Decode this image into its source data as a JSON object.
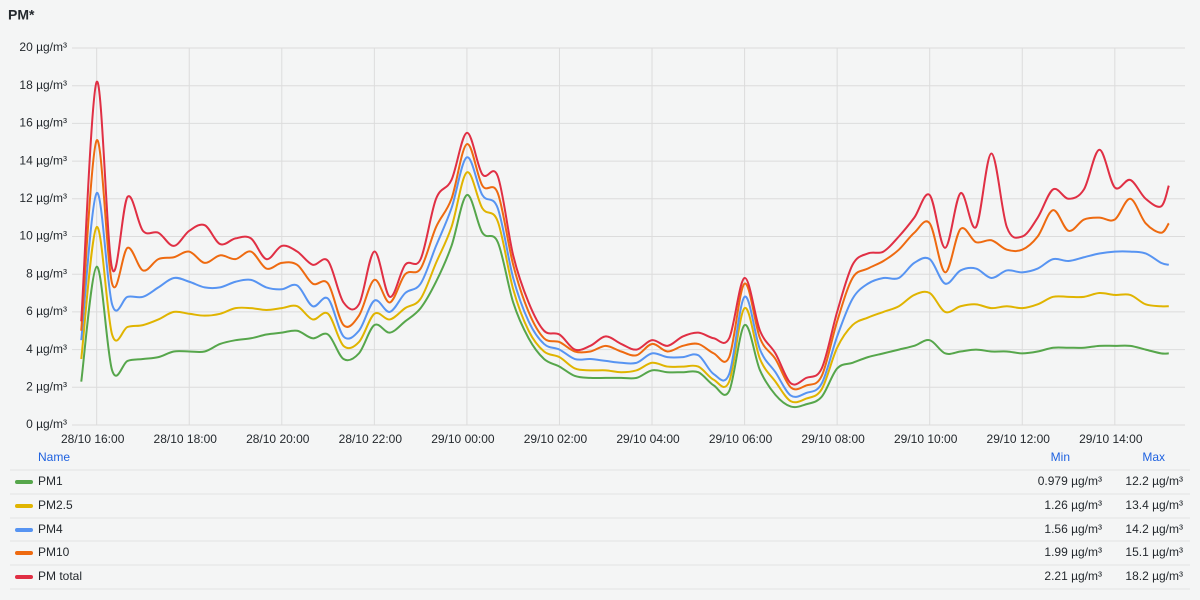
{
  "chart_data": {
    "type": "line",
    "title": "PM*",
    "x": [
      "28/10 15:40",
      "28/10 16:00",
      "28/10 16:20",
      "28/10 16:40",
      "28/10 17:00",
      "28/10 17:20",
      "28/10 17:40",
      "28/10 18:00",
      "28/10 18:20",
      "28/10 18:40",
      "28/10 19:00",
      "28/10 19:20",
      "28/10 19:40",
      "28/10 20:00",
      "28/10 20:20",
      "28/10 20:40",
      "28/10 21:00",
      "28/10 21:20",
      "28/10 21:40",
      "28/10 22:00",
      "28/10 22:20",
      "28/10 22:40",
      "28/10 23:00",
      "28/10 23:20",
      "28/10 23:40",
      "29/10 00:00",
      "29/10 00:20",
      "29/10 00:40",
      "29/10 01:00",
      "29/10 01:20",
      "29/10 01:40",
      "29/10 02:00",
      "29/10 02:20",
      "29/10 02:40",
      "29/10 03:00",
      "29/10 03:20",
      "29/10 03:40",
      "29/10 04:00",
      "29/10 04:20",
      "29/10 04:40",
      "29/10 05:00",
      "29/10 05:20",
      "29/10 05:40",
      "29/10 06:00",
      "29/10 06:20",
      "29/10 06:40",
      "29/10 07:00",
      "29/10 07:20",
      "29/10 07:40",
      "29/10 08:00",
      "29/10 08:20",
      "29/10 08:40",
      "29/10 09:00",
      "29/10 09:20",
      "29/10 09:40",
      "29/10 10:00",
      "29/10 10:20",
      "29/10 10:40",
      "29/10 11:00",
      "29/10 11:20",
      "29/10 11:40",
      "29/10 12:00",
      "29/10 12:20",
      "29/10 12:40",
      "29/10 13:00",
      "29/10 13:20",
      "29/10 13:40",
      "29/10 14:00",
      "29/10 14:20",
      "29/10 14:40",
      "29/10 15:00",
      "29/10 15:10"
    ],
    "xlim": [
      "28/10 15:28",
      "29/10 15:31"
    ],
    "xticks": [
      "28/10 16:00",
      "28/10 18:00",
      "28/10 20:00",
      "28/10 22:00",
      "29/10 00:00",
      "29/10 02:00",
      "29/10 04:00",
      "29/10 06:00",
      "29/10 08:00",
      "29/10 10:00",
      "29/10 12:00",
      "29/10 14:00"
    ],
    "ylim": [
      0,
      20
    ],
    "yticks": [
      {
        "value": 0,
        "label": "0 µg/m³"
      },
      {
        "value": 2,
        "label": "2 µg/m³"
      },
      {
        "value": 4,
        "label": "4 µg/m³"
      },
      {
        "value": 6,
        "label": "6 µg/m³"
      },
      {
        "value": 8,
        "label": "8 µg/m³"
      },
      {
        "value": 10,
        "label": "10 µg/m³"
      },
      {
        "value": 12,
        "label": "12 µg/m³"
      },
      {
        "value": 14,
        "label": "14 µg/m³"
      },
      {
        "value": 16,
        "label": "16 µg/m³"
      },
      {
        "value": 18,
        "label": "18 µg/m³"
      },
      {
        "value": 20,
        "label": "20 µg/m³"
      }
    ],
    "grid": true,
    "legend_headers": [
      "Name",
      "Min",
      "Max"
    ],
    "series": [
      {
        "name": "PM1",
        "color": "#56a64b",
        "min": "0.979 µg/m³",
        "max": "12.2 µg/m³",
        "values": [
          2.3,
          8.4,
          2.9,
          3.4,
          3.5,
          3.6,
          3.9,
          3.9,
          3.9,
          4.3,
          4.5,
          4.6,
          4.8,
          4.9,
          5.0,
          4.6,
          4.8,
          3.5,
          3.8,
          5.3,
          4.9,
          5.5,
          6.2,
          7.6,
          9.5,
          12.2,
          10.2,
          9.7,
          6.5,
          4.6,
          3.5,
          3.1,
          2.6,
          2.5,
          2.5,
          2.5,
          2.5,
          2.9,
          2.8,
          2.8,
          2.8,
          2.1,
          1.8,
          5.3,
          2.9,
          1.6,
          0.979,
          1.1,
          1.5,
          3.0,
          3.3,
          3.6,
          3.8,
          4.0,
          4.2,
          4.5,
          3.8,
          3.9,
          4.0,
          3.9,
          3.9,
          3.8,
          3.9,
          4.1,
          4.1,
          4.1,
          4.2,
          4.2,
          4.2,
          4.0,
          3.8,
          3.8
        ]
      },
      {
        "name": "PM2.5",
        "color": "#e0b400",
        "min": "1.26 µg/m³",
        "max": "13.4 µg/m³",
        "values": [
          3.5,
          10.5,
          4.8,
          5.2,
          5.3,
          5.6,
          6.0,
          5.9,
          5.8,
          5.9,
          6.2,
          6.2,
          6.1,
          6.2,
          6.3,
          5.6,
          5.9,
          4.2,
          4.4,
          5.9,
          5.6,
          6.2,
          6.7,
          8.6,
          10.5,
          13.4,
          11.5,
          10.8,
          7.2,
          5.0,
          3.9,
          3.6,
          3.0,
          2.9,
          2.9,
          2.8,
          2.9,
          3.3,
          3.1,
          3.1,
          3.1,
          2.4,
          2.3,
          6.2,
          3.5,
          2.3,
          1.26,
          1.4,
          1.9,
          4.1,
          5.3,
          5.7,
          6.0,
          6.3,
          6.9,
          7.0,
          6.0,
          6.3,
          6.4,
          6.2,
          6.3,
          6.2,
          6.4,
          6.8,
          6.8,
          6.8,
          7.0,
          6.9,
          6.9,
          6.4,
          6.3,
          6.3
        ]
      },
      {
        "name": "PM4",
        "color": "#5794f2",
        "min": "1.56 µg/m³",
        "max": "14.2 µg/m³",
        "values": [
          4.5,
          12.3,
          6.4,
          6.8,
          6.8,
          7.3,
          7.8,
          7.6,
          7.3,
          7.3,
          7.6,
          7.7,
          7.3,
          7.2,
          7.4,
          6.3,
          6.7,
          4.7,
          5.0,
          6.6,
          6.0,
          7.0,
          7.5,
          9.5,
          11.5,
          14.2,
          12.2,
          11.5,
          7.8,
          5.5,
          4.3,
          4.0,
          3.5,
          3.5,
          3.4,
          3.3,
          3.3,
          3.8,
          3.6,
          3.6,
          3.7,
          2.7,
          2.7,
          6.8,
          4.0,
          2.8,
          1.56,
          1.7,
          2.2,
          4.7,
          6.7,
          7.5,
          7.8,
          7.8,
          8.6,
          8.8,
          7.5,
          8.2,
          8.3,
          7.8,
          8.2,
          8.1,
          8.3,
          8.8,
          8.7,
          8.9,
          9.1,
          9.2,
          9.2,
          9.1,
          8.6,
          8.5
        ]
      },
      {
        "name": "PM10",
        "color": "#ee6a10",
        "min": "1.99 µg/m³",
        "max": "15.1 µg/m³",
        "values": [
          5.0,
          15.1,
          7.5,
          9.4,
          8.2,
          8.8,
          8.9,
          9.2,
          8.6,
          9.0,
          8.8,
          9.2,
          8.3,
          8.6,
          8.5,
          7.5,
          7.5,
          5.3,
          5.8,
          7.7,
          6.5,
          8.0,
          8.3,
          10.5,
          12.0,
          14.9,
          12.7,
          12.3,
          8.5,
          6.0,
          4.6,
          4.4,
          3.9,
          3.9,
          4.2,
          3.9,
          3.7,
          4.3,
          3.9,
          4.2,
          4.3,
          3.8,
          3.6,
          7.5,
          4.6,
          3.5,
          1.99,
          2.1,
          2.6,
          5.5,
          7.8,
          8.3,
          8.7,
          9.3,
          10.2,
          10.7,
          8.1,
          10.4,
          9.7,
          9.8,
          9.3,
          9.3,
          10.0,
          11.4,
          10.3,
          10.9,
          11.0,
          10.9,
          12.0,
          10.7,
          10.2,
          10.7
        ]
      },
      {
        "name": "PM total",
        "color": "#e02f44",
        "min": "2.21 µg/m³",
        "max": "18.2 µg/m³",
        "values": [
          5.5,
          18.2,
          8.3,
          12.1,
          10.3,
          10.2,
          9.5,
          10.3,
          10.6,
          9.6,
          9.9,
          9.9,
          8.8,
          9.5,
          9.2,
          8.5,
          8.7,
          6.5,
          6.4,
          9.2,
          6.8,
          8.5,
          8.8,
          12.0,
          13.0,
          15.5,
          13.3,
          13.2,
          9.0,
          6.5,
          5.0,
          4.8,
          4.0,
          4.2,
          4.7,
          4.3,
          4.0,
          4.5,
          4.2,
          4.7,
          4.9,
          4.6,
          4.6,
          7.8,
          5.0,
          3.8,
          2.21,
          2.5,
          3.0,
          6.0,
          8.5,
          9.1,
          9.2,
          10.0,
          11.0,
          12.2,
          9.4,
          12.3,
          10.5,
          14.4,
          10.5,
          10.0,
          11.0,
          12.5,
          12.0,
          12.5,
          14.6,
          12.6,
          13.0,
          12.0,
          11.6,
          12.7
        ]
      }
    ]
  }
}
